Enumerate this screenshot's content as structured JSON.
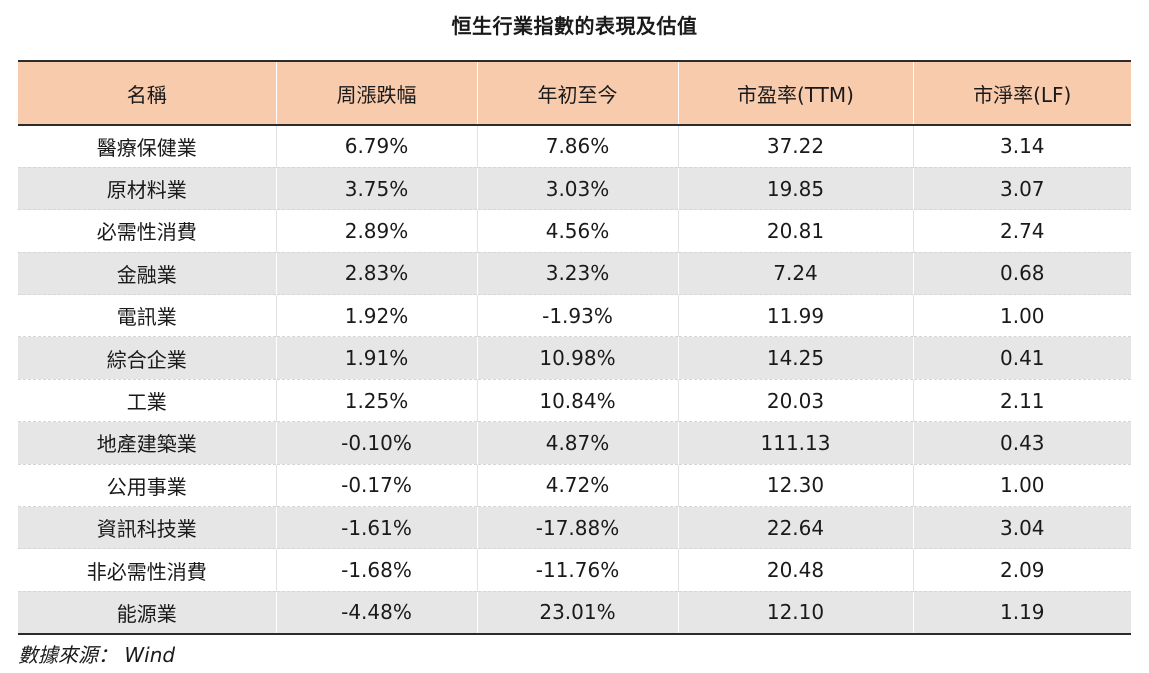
{
  "title": "恒生行業指數的表現及估值",
  "table": {
    "headers": [
      "名稱",
      "周漲跌幅",
      "年初至今",
      "市盈率(TTM)",
      "市淨率(LF)"
    ],
    "rows": [
      [
        "醫療保健業",
        "6.79%",
        "7.86%",
        "37.22",
        "3.14"
      ],
      [
        "原材料業",
        "3.75%",
        "3.03%",
        "19.85",
        "3.07"
      ],
      [
        "必需性消費",
        "2.89%",
        "4.56%",
        "20.81",
        "2.74"
      ],
      [
        "金融業",
        "2.83%",
        "3.23%",
        "7.24",
        "0.68"
      ],
      [
        "電訊業",
        "1.92%",
        "-1.93%",
        "11.99",
        "1.00"
      ],
      [
        "綜合企業",
        "1.91%",
        "10.98%",
        "14.25",
        "0.41"
      ],
      [
        "工業",
        "1.25%",
        "10.84%",
        "20.03",
        "2.11"
      ],
      [
        "地產建築業",
        "-0.10%",
        "4.87%",
        "111.13",
        "0.43"
      ],
      [
        "公用事業",
        "-0.17%",
        "4.72%",
        "12.30",
        "1.00"
      ],
      [
        "資訊科技業",
        "-1.61%",
        "-17.88%",
        "22.64",
        "3.04"
      ],
      [
        "非必需性消費",
        "-1.68%",
        "-11.76%",
        "20.48",
        "2.09"
      ],
      [
        "能源業",
        "-4.48%",
        "23.01%",
        "12.10",
        "1.19"
      ]
    ]
  },
  "source": "數據來源： Wind",
  "colors": {
    "header_bg": "#f8cbad",
    "alt_row_bg": "#e7e6e6"
  }
}
